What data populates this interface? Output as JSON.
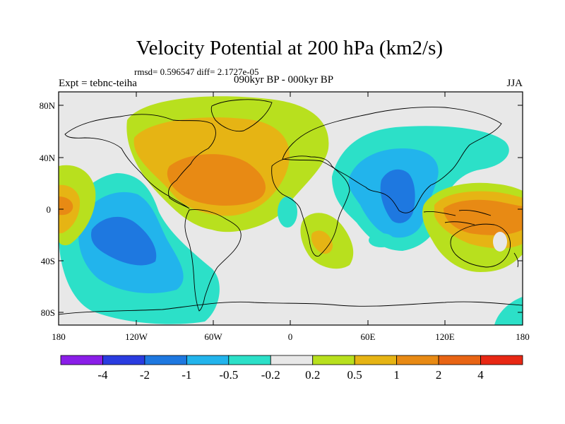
{
  "title": "Velocity Potential at 200 hPa (km2/s)",
  "stats": "rmsd= 0.596547 diff= 2.1727e-05",
  "experiment": "Expt = tebnc-teiha",
  "time_range": "090kyr BP - 000kyr BP",
  "season": "JJA",
  "y_axis_labels": [
    "80N",
    "40N",
    "0",
    "40S",
    "80S"
  ],
  "x_axis_labels": [
    "180",
    "120W",
    "60W",
    "0",
    "60E",
    "120E",
    "180"
  ],
  "colorbar": {
    "colors": [
      "#8a1ee8",
      "#2a3ce0",
      "#1e78e0",
      "#22b4ec",
      "#2ce0c8",
      "#e8e8e8",
      "#b8e01e",
      "#e6b414",
      "#e88a14",
      "#e86414",
      "#e82814"
    ],
    "labels": [
      "-4",
      "-2",
      "-1",
      "-0.5",
      "-0.2",
      "0.2",
      "0.5",
      "1",
      "2",
      "4"
    ]
  }
}
